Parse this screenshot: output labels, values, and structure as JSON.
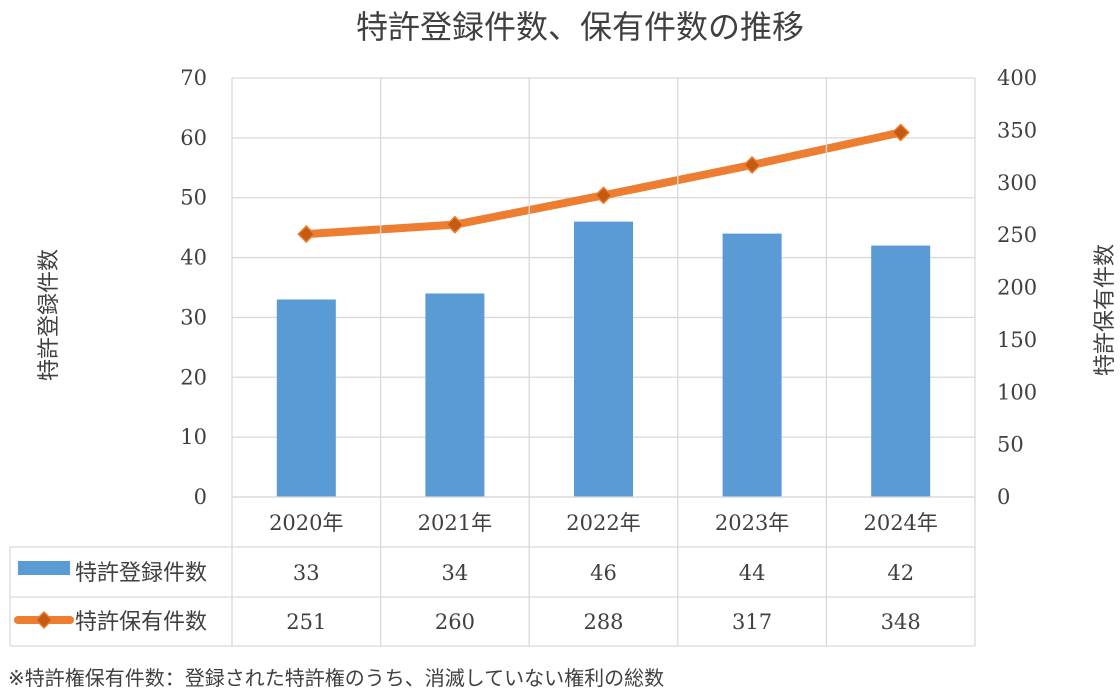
{
  "chart_data": {
    "type": "bar+line",
    "title": "特許登録件数、保有件数の推移",
    "categories": [
      "2020年",
      "2021年",
      "2022年",
      "2023年",
      "2024年"
    ],
    "series": [
      {
        "name": "特許登録件数",
        "type": "bar",
        "axis": "left",
        "values": [
          33,
          34,
          46,
          44,
          42
        ],
        "color": "#5B9BD5"
      },
      {
        "name": "特許保有件数",
        "type": "line",
        "axis": "right",
        "values": [
          251,
          260,
          288,
          317,
          348
        ],
        "color": "#ED7D31",
        "marker_color": "#C55A11"
      }
    ],
    "y_left": {
      "label": "特許登録件数",
      "ylim": [
        0,
        70
      ],
      "ticks": [
        "0",
        "10",
        "20",
        "30",
        "40",
        "50",
        "60",
        "70"
      ]
    },
    "y_right": {
      "label": "特許保有件数",
      "ylim": [
        0,
        400
      ],
      "ticks": [
        "0",
        "50",
        "100",
        "150",
        "200",
        "250",
        "300",
        "350",
        "400"
      ]
    },
    "data_table": true,
    "grid": true
  },
  "footnote": "※特許権保有件数：登録された特許権のうち、消滅していない権利の総数",
  "colors": {
    "grid": "#D9D9D9",
    "text": "#404040"
  }
}
